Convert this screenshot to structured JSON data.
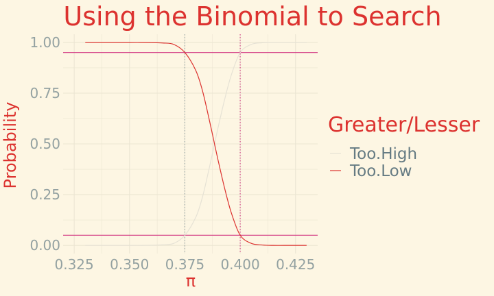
{
  "chart_data": {
    "type": "line",
    "title": "Using the Binomial to Search",
    "xlabel": "π",
    "ylabel": "Probability",
    "xlim": [
      0.32,
      0.435
    ],
    "ylim": [
      -0.04,
      1.04
    ],
    "x_ticks": [
      "0.325",
      "0.350",
      "0.375",
      "0.400",
      "0.425"
    ],
    "x_tick_values": [
      0.325,
      0.35,
      0.375,
      0.4,
      0.425
    ],
    "y_ticks": [
      "0.00",
      "0.25",
      "0.50",
      "0.75",
      "1.00"
    ],
    "y_tick_values": [
      0,
      0.25,
      0.5,
      0.75,
      1
    ],
    "grid": true,
    "legend": {
      "title": "Greater/Lesser",
      "placement": "right"
    },
    "series": [
      {
        "name": "Too.High",
        "color": "#e6e2d5",
        "x": [
          0.33,
          0.34,
          0.35,
          0.355,
          0.36,
          0.365,
          0.37,
          0.375,
          0.38,
          0.383,
          0.386,
          0.388,
          0.39,
          0.393,
          0.396,
          0.4,
          0.405,
          0.41,
          0.415,
          0.42,
          0.43
        ],
        "y": [
          0,
          0,
          0,
          0,
          0.001,
          0.003,
          0.01,
          0.05,
          0.14,
          0.24,
          0.38,
          0.48,
          0.58,
          0.72,
          0.84,
          0.95,
          0.99,
          0.998,
          1,
          1,
          1
        ]
      },
      {
        "name": "Too.Low",
        "color": "#dc322f",
        "x": [
          0.33,
          0.34,
          0.35,
          0.355,
          0.36,
          0.365,
          0.37,
          0.375,
          0.38,
          0.383,
          0.386,
          0.388,
          0.39,
          0.393,
          0.396,
          0.4,
          0.405,
          0.41,
          0.415,
          0.42,
          0.43
        ],
        "y": [
          1,
          1,
          1,
          1,
          0.999,
          0.997,
          0.99,
          0.95,
          0.86,
          0.76,
          0.62,
          0.52,
          0.42,
          0.28,
          0.16,
          0.05,
          0.01,
          0.002,
          0,
          0,
          0
        ]
      }
    ],
    "hlines": [
      {
        "y": 0.95,
        "color": "#d33682",
        "style": "solid"
      },
      {
        "y": 0.05,
        "color": "#d33682",
        "style": "solid"
      }
    ],
    "vlines": [
      {
        "x": 0.375,
        "color": "#93a1a1",
        "style": "dotted"
      },
      {
        "x": 0.4,
        "color": "#d33682",
        "style": "dotted"
      }
    ]
  }
}
